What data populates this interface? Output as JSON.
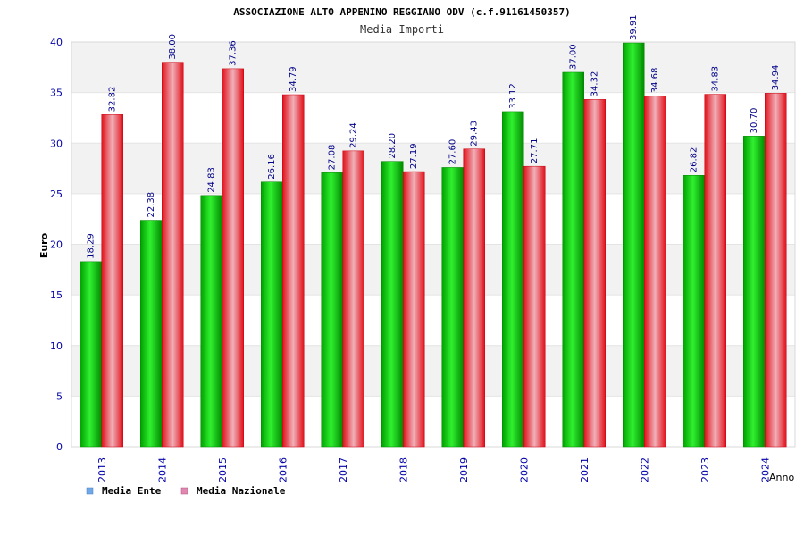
{
  "chart_data": {
    "type": "bar",
    "title": "ASSOCIAZIONE ALTO APPENINO REGGIANO ODV (c.f.91161450357)",
    "subtitle": "Media Importi",
    "xlabel": "Anno",
    "ylabel": "Euro",
    "ylim": [
      0,
      40
    ],
    "yticks": [
      "0",
      "5",
      "10",
      "15",
      "20",
      "25",
      "30",
      "35",
      "40"
    ],
    "grid": true,
    "legend_position": "bottom-left",
    "categories": [
      "2013",
      "2014",
      "2015",
      "2016",
      "2017",
      "2018",
      "2019",
      "2020",
      "2021",
      "2022",
      "2023",
      "2024"
    ],
    "series": [
      {
        "name": "Media Ente",
        "color": "#00c000",
        "legend_color": "#6fa8e8",
        "values": [
          18.29,
          22.38,
          24.83,
          26.16,
          27.08,
          28.2,
          27.6,
          33.12,
          37.0,
          39.91,
          26.82,
          30.7
        ],
        "labels": [
          "18.29",
          "22.38",
          "24.83",
          "26.16",
          "27.08",
          "28.20",
          "27.60",
          "33.12",
          "37.00",
          "39.91",
          "26.82",
          "30.70"
        ]
      },
      {
        "name": "Media Nazionale",
        "color": "#e8202a",
        "legend_color": "#e088b0",
        "values": [
          32.82,
          38.0,
          37.36,
          34.79,
          29.24,
          27.19,
          29.43,
          27.71,
          34.32,
          34.68,
          34.83,
          34.94
        ],
        "labels": [
          "32.82",
          "38.00",
          "37.36",
          "34.79",
          "29.24",
          "27.19",
          "29.43",
          "27.71",
          "34.32",
          "34.68",
          "34.83",
          "34.94"
        ]
      }
    ]
  }
}
